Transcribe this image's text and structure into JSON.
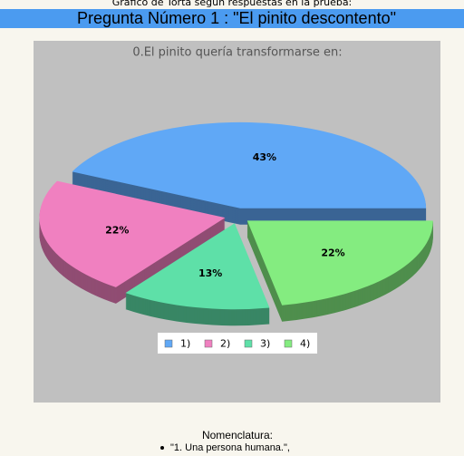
{
  "header": {
    "caption": "Gráfico de Torta según respuestas en la prueba:",
    "title": "Pregunta Número 1 : \"El pinito descontento\""
  },
  "chart_data": {
    "type": "pie",
    "title": "0.El pinito quería transformarse en:",
    "categories": [
      "1)",
      "2)",
      "3)",
      "4)"
    ],
    "values": [
      43,
      22,
      13,
      22
    ],
    "value_labels": [
      "43%",
      "22%",
      "13%",
      "22%"
    ],
    "colors": [
      "#60a8f6",
      "#f080c0",
      "#5ee0a8",
      "#84ec80"
    ],
    "legend": "bottom"
  },
  "nomenclature": {
    "title": "Nomenclatura:",
    "items": [
      "\"1. Una persona humana.\","
    ]
  }
}
